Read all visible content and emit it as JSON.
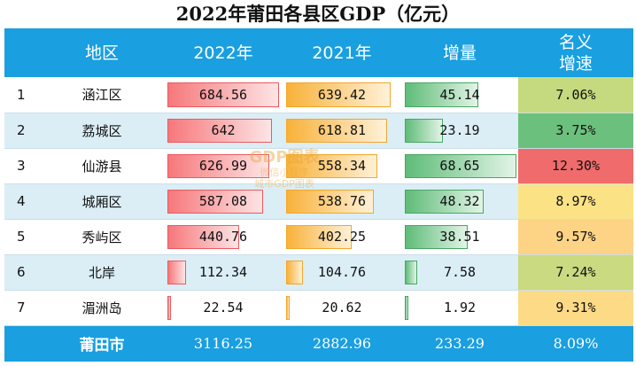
{
  "title": "2022年莆田各县区GDP（亿元）",
  "headers": [
    "",
    "地区",
    "2022年",
    "2021年",
    "增量",
    "名义\n增速"
  ],
  "colors": {
    "header": "#1a9fe0",
    "bar2022": "#f6787b",
    "bar2021": "#f8b23a",
    "barInc": "#5fbc78"
  },
  "chart_data": {
    "type": "table",
    "columns": [
      "地区",
      "2022年",
      "2021年",
      "增量",
      "名义增速"
    ],
    "rows": [
      {
        "idx": "1",
        "region": "涵江区",
        "v2022": "684.56",
        "v2021": "639.42",
        "inc": "45.14",
        "rate": "7.06%",
        "rateColor": "#c5d97e"
      },
      {
        "idx": "2",
        "region": "荔城区",
        "v2022": "642",
        "v2021": "618.81",
        "inc": "23.19",
        "rate": "3.75%",
        "rateColor": "#6cc07d"
      },
      {
        "idx": "3",
        "region": "仙游县",
        "v2022": "626.99",
        "v2021": "558.34",
        "inc": "68.65",
        "rate": "12.30%",
        "rateColor": "#f06b6b"
      },
      {
        "idx": "4",
        "region": "城厢区",
        "v2022": "587.08",
        "v2021": "538.76",
        "inc": "48.32",
        "rate": "8.97%",
        "rateColor": "#fbe285"
      },
      {
        "idx": "5",
        "region": "秀屿区",
        "v2022": "440.76",
        "v2021": "402.25",
        "inc": "38.51",
        "rate": "9.57%",
        "rateColor": "#fdd385"
      },
      {
        "idx": "6",
        "region": "北岸",
        "v2022": "112.34",
        "v2021": "104.76",
        "inc": "7.58",
        "rate": "7.24%",
        "rateColor": "#c9da80"
      },
      {
        "idx": "7",
        "region": "湄洲岛",
        "v2022": "22.54",
        "v2021": "20.62",
        "inc": "1.92",
        "rate": "9.31%",
        "rateColor": "#fdda86"
      }
    ],
    "total": {
      "region": "莆田市",
      "v2022": "3116.25",
      "v2021": "2882.96",
      "inc": "233.29",
      "rate": "8.09%"
    }
  },
  "watermark": {
    "logo": "GDP图表",
    "line1": "微信小程序",
    "line2": "城市GDP图表"
  }
}
